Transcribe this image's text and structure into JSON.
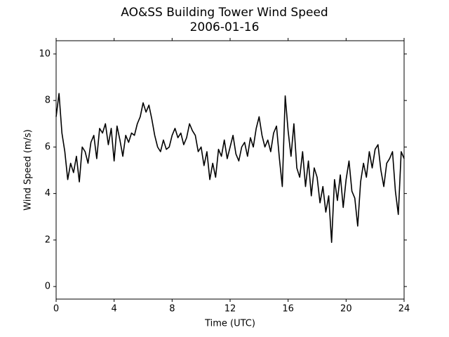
{
  "chart_data": {
    "type": "line",
    "title": "AO&SS Building Tower Wind Speed",
    "subtitle": "2006-01-16",
    "x_label": "Time (UTC)",
    "y_label": "Wind Speed (m/s)",
    "xlim": [
      0,
      24
    ],
    "xticks": [
      0,
      4,
      8,
      12,
      16,
      20,
      24
    ],
    "ylim": [
      -0.54,
      10.57
    ],
    "yticks": [
      0,
      2,
      4,
      6,
      8,
      10
    ],
    "grid": false,
    "x": [
      0,
      0.2,
      0.4,
      0.6,
      0.8,
      1.0,
      1.2,
      1.4,
      1.6,
      1.8,
      2.0,
      2.2,
      2.4,
      2.6,
      2.8,
      3.0,
      3.2,
      3.4,
      3.6,
      3.8,
      4.0,
      4.2,
      4.4,
      4.6,
      4.8,
      5.0,
      5.2,
      5.4,
      5.6,
      5.8,
      6.0,
      6.2,
      6.4,
      6.6,
      6.8,
      7.0,
      7.2,
      7.4,
      7.6,
      7.8,
      8.0,
      8.2,
      8.4,
      8.6,
      8.8,
      9.0,
      9.2,
      9.4,
      9.6,
      9.8,
      10.0,
      10.2,
      10.4,
      10.6,
      10.8,
      11.0,
      11.2,
      11.4,
      11.6,
      11.8,
      12.0,
      12.2,
      12.4,
      12.6,
      12.8,
      13.0,
      13.2,
      13.4,
      13.6,
      13.8,
      14.0,
      14.2,
      14.4,
      14.6,
      14.8,
      15.0,
      15.2,
      15.4,
      15.6,
      15.8,
      16.0,
      16.2,
      16.4,
      16.6,
      16.8,
      17.0,
      17.2,
      17.4,
      17.6,
      17.8,
      18.0,
      18.2,
      18.4,
      18.6,
      18.8,
      19.0,
      19.2,
      19.4,
      19.6,
      19.8,
      20.0,
      20.2,
      20.4,
      20.6,
      20.8,
      21.0,
      21.2,
      21.4,
      21.6,
      21.8,
      22.0,
      22.2,
      22.4,
      22.6,
      22.8,
      23.0,
      23.2,
      23.4,
      23.6,
      23.8,
      24.0
    ],
    "series": [
      {
        "color": "#000000",
        "values": [
          7.3,
          8.3,
          6.6,
          5.8,
          4.6,
          5.3,
          4.9,
          5.6,
          4.5,
          6.0,
          5.8,
          5.3,
          6.2,
          6.5,
          5.5,
          6.8,
          6.6,
          7.0,
          6.1,
          6.8,
          5.4,
          6.9,
          6.3,
          5.6,
          6.5,
          6.2,
          6.6,
          6.5,
          7.0,
          7.3,
          7.9,
          7.5,
          7.8,
          7.2,
          6.5,
          6.0,
          5.8,
          6.3,
          5.9,
          6.0,
          6.5,
          6.8,
          6.4,
          6.6,
          6.1,
          6.4,
          7.0,
          6.7,
          6.5,
          5.8,
          6.0,
          5.2,
          5.8,
          4.6,
          5.3,
          4.7,
          5.9,
          5.6,
          6.3,
          5.5,
          6.0,
          6.5,
          5.7,
          5.4,
          6.0,
          6.2,
          5.6,
          6.4,
          6.0,
          6.8,
          7.3,
          6.5,
          6.0,
          6.3,
          5.8,
          6.6,
          6.9,
          5.5,
          4.3,
          8.2,
          6.7,
          5.6,
          7.0,
          5.1,
          4.7,
          5.8,
          4.3,
          5.4,
          3.9,
          5.1,
          4.7,
          3.6,
          4.3,
          3.2,
          3.9,
          1.9,
          4.6,
          3.7,
          4.8,
          3.4,
          4.6,
          5.4,
          4.1,
          3.8,
          2.6,
          4.5,
          5.3,
          4.7,
          5.8,
          5.1,
          5.9,
          6.1,
          5.0,
          4.3,
          5.3,
          5.5,
          5.8,
          4.1,
          3.1,
          5.8,
          5.5
        ]
      }
    ]
  }
}
